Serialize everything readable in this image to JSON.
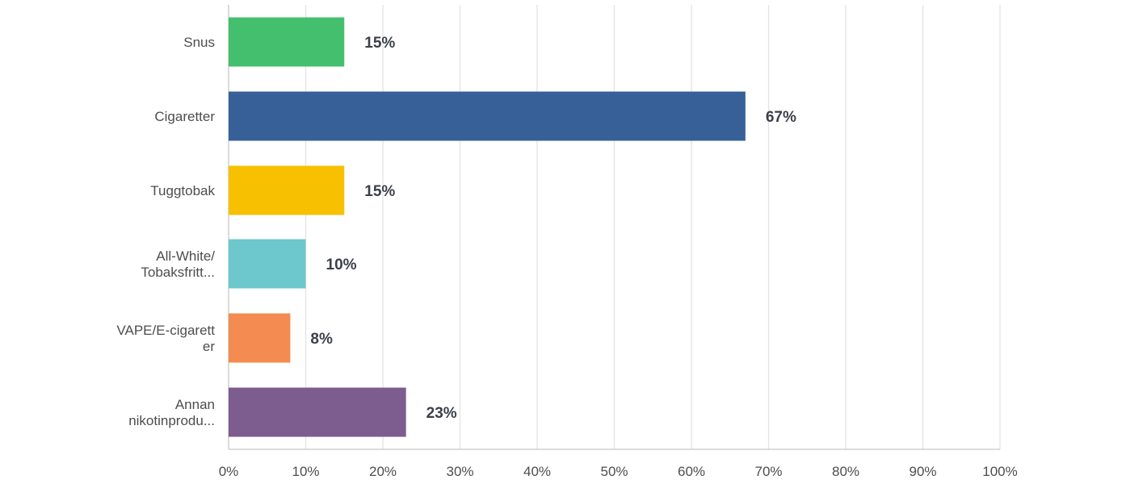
{
  "chart_data": {
    "type": "bar",
    "orientation": "horizontal",
    "categories": [
      [
        "Snus"
      ],
      [
        "Cigaretter"
      ],
      [
        "Tuggtobak"
      ],
      [
        "All-White/",
        "Tobaksfritt..."
      ],
      [
        "VAPE/E-cigarett",
        "er"
      ],
      [
        "Annan",
        "nikotinprodu..."
      ]
    ],
    "values": [
      15,
      67,
      15,
      10,
      8,
      23
    ],
    "value_labels": [
      "15%",
      "67%",
      "15%",
      "10%",
      "8%",
      "23%"
    ],
    "colors": [
      "#44bf6e",
      "#376099",
      "#f7c000",
      "#6cc8cc",
      "#f48b50",
      "#7d5c8f"
    ],
    "xlim": [
      0,
      100
    ],
    "xticks": [
      "0%",
      "10%",
      "20%",
      "30%",
      "40%",
      "50%",
      "60%",
      "70%",
      "80%",
      "90%",
      "100%"
    ],
    "grid": true
  }
}
